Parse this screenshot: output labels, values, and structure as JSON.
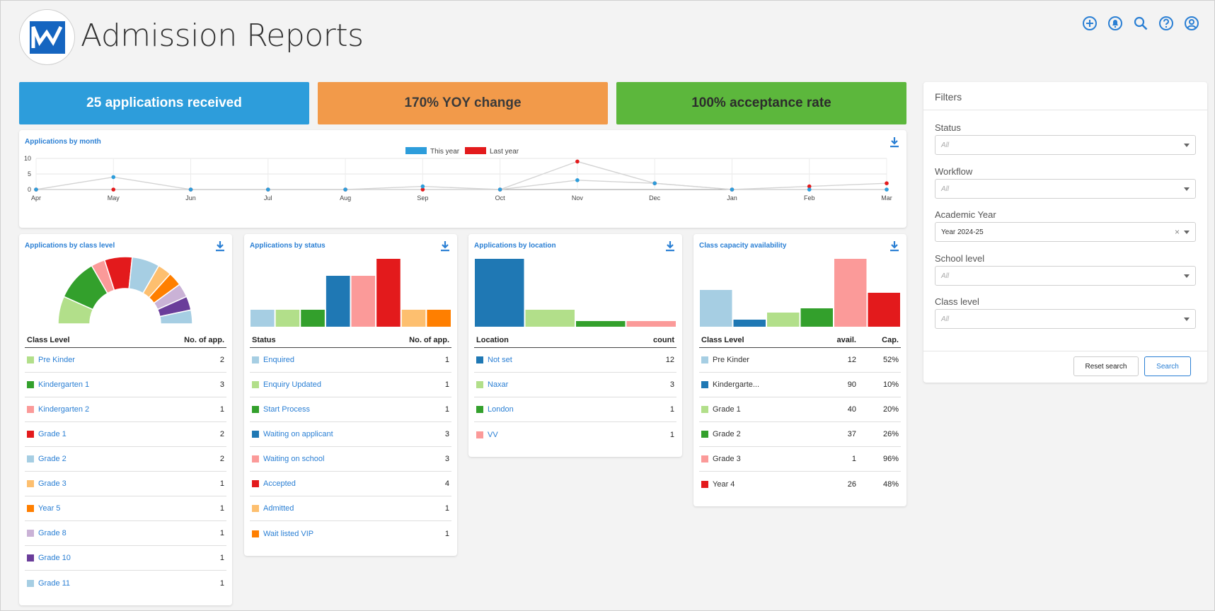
{
  "header": {
    "title": "Admission Reports",
    "icons": [
      "add-circle-icon",
      "bell-icon",
      "search-icon",
      "help-icon",
      "user-icon"
    ]
  },
  "stats": {
    "applications": "25 applications received",
    "yoy": "170% YOY change",
    "acceptance": "100% acceptance rate"
  },
  "colors": {
    "blue": "#2d9ddb",
    "orange": "#f29a4a",
    "green": "#5cb73c",
    "link": "#2a7fd4"
  },
  "monthly": {
    "title": "Applications by month",
    "legend": [
      "This year",
      "Last year"
    ],
    "chart_data": {
      "type": "line",
      "x": [
        "Apr",
        "May",
        "Jun",
        "Jul",
        "Aug",
        "Sep",
        "Oct",
        "Nov",
        "Dec",
        "Jan",
        "Feb",
        "Mar"
      ],
      "yticks": [
        "10",
        "5",
        "0"
      ],
      "ylim": [
        0,
        10
      ],
      "series": [
        {
          "name": "This year",
          "color": "#2d9ddb",
          "values": [
            0,
            4,
            0,
            0,
            0,
            1,
            0,
            3,
            2,
            0,
            0,
            0
          ]
        },
        {
          "name": "Last year",
          "color": "#e31a1c",
          "values": [
            0,
            0,
            0,
            0,
            0,
            0,
            0,
            9,
            2,
            0,
            1,
            2
          ]
        }
      ]
    }
  },
  "class_level": {
    "title": "Applications by class level",
    "col_name": "Class Level",
    "col_count": "No. of app.",
    "rows": [
      {
        "name": "Pre Kinder",
        "count": "2",
        "color": "#b2df8a"
      },
      {
        "name": "Kindergarten 1",
        "count": "3",
        "color": "#33a02c"
      },
      {
        "name": "Kindergarten 2",
        "count": "1",
        "color": "#fb9a99"
      },
      {
        "name": "Grade 1",
        "count": "2",
        "color": "#e31a1c"
      },
      {
        "name": "Grade 2",
        "count": "2",
        "color": "#a6cee3"
      },
      {
        "name": "Grade 3",
        "count": "1",
        "color": "#fdbf6f"
      },
      {
        "name": "Year 5",
        "count": "1",
        "color": "#ff7f00"
      },
      {
        "name": "Grade 8",
        "count": "1",
        "color": "#cab2d6"
      },
      {
        "name": "Grade 10",
        "count": "1",
        "color": "#6a3d9a"
      },
      {
        "name": "Grade 11",
        "count": "1",
        "color": "#a6cee3"
      }
    ],
    "chart_data": {
      "type": "pie",
      "values": [
        2,
        3,
        1,
        2,
        2,
        1,
        1,
        1,
        1,
        1
      ]
    }
  },
  "status": {
    "title": "Applications by status",
    "col_name": "Status",
    "col_count": "No. of app.",
    "rows": [
      {
        "name": "Enquired",
        "count": "1",
        "color": "#a6cee3"
      },
      {
        "name": "Enquiry Updated",
        "count": "1",
        "color": "#b2df8a"
      },
      {
        "name": "Start Process",
        "count": "1",
        "color": "#33a02c"
      },
      {
        "name": "Waiting on applicant",
        "count": "3",
        "color": "#1f78b4"
      },
      {
        "name": "Waiting on school",
        "count": "3",
        "color": "#fb9a99"
      },
      {
        "name": "Accepted",
        "count": "4",
        "color": "#e31a1c"
      },
      {
        "name": "Admitted",
        "count": "1",
        "color": "#fdbf6f"
      },
      {
        "name": "Wait listed VIP",
        "count": "1",
        "color": "#ff7f00"
      }
    ],
    "chart_data": {
      "type": "bar",
      "values": [
        1,
        1,
        1,
        3,
        3,
        4,
        1,
        1
      ]
    }
  },
  "location": {
    "title": "Applications by location",
    "col_name": "Location",
    "col_count": "count",
    "rows": [
      {
        "name": "Not set",
        "count": "12",
        "color": "#1f78b4"
      },
      {
        "name": "Naxar",
        "count": "3",
        "color": "#b2df8a"
      },
      {
        "name": "London",
        "count": "1",
        "color": "#33a02c"
      },
      {
        "name": "VV",
        "count": "1",
        "color": "#fb9a99"
      }
    ],
    "chart_data": {
      "type": "bar",
      "values": [
        12,
        3,
        1,
        1
      ]
    }
  },
  "capacity": {
    "title": "Class capacity availability",
    "col_name": "Class Level",
    "col_avail": "avail.",
    "col_cap": "Cap.",
    "rows": [
      {
        "name": "Pre Kinder",
        "avail": "12",
        "cap": "52%",
        "color": "#a6cee3"
      },
      {
        "name": "Kindergarte...",
        "avail": "90",
        "cap": "10%",
        "color": "#1f78b4"
      },
      {
        "name": "Grade 1",
        "avail": "40",
        "cap": "20%",
        "color": "#b2df8a"
      },
      {
        "name": "Grade 2",
        "avail": "37",
        "cap": "26%",
        "color": "#33a02c"
      },
      {
        "name": "Grade 3",
        "avail": "1",
        "cap": "96%",
        "color": "#fb9a99"
      },
      {
        "name": "Year 4",
        "avail": "26",
        "cap": "48%",
        "color": "#e31a1c"
      }
    ],
    "chart_data": {
      "type": "bar",
      "values": [
        52,
        10,
        20,
        26,
        96,
        48
      ]
    }
  },
  "filters": {
    "title": "Filters",
    "status": {
      "label": "Status",
      "value": "All"
    },
    "workflow": {
      "label": "Workflow",
      "value": "All"
    },
    "academic_year": {
      "label": "Academic Year",
      "value": "Year 2024-25",
      "clear": "×"
    },
    "school_level": {
      "label": "School level",
      "value": "All"
    },
    "class_level": {
      "label": "Class level",
      "value": "All"
    },
    "reset_label": "Reset search",
    "search_label": "Search"
  }
}
